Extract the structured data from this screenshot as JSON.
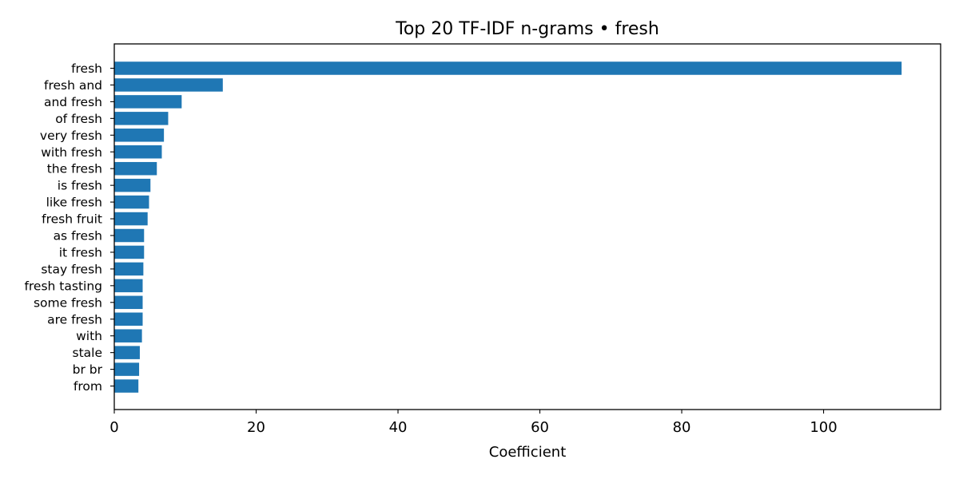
{
  "chart_data": {
    "type": "bar",
    "orientation": "horizontal",
    "title": "Top 20 TF-IDF n-grams • fresh",
    "xlabel": "Coefficient",
    "ylabel": "",
    "bar_color": "#1f77b4",
    "xlim": [
      0,
      116.5
    ],
    "xticks": [
      0,
      20,
      40,
      60,
      80,
      100
    ],
    "grid": false,
    "legend": "none",
    "categories": [
      "fresh",
      "fresh and",
      "and fresh",
      "of fresh",
      "very fresh",
      "with fresh",
      "the fresh",
      "is fresh",
      "like fresh",
      "fresh fruit",
      "as fresh",
      "it fresh",
      "stay fresh",
      "fresh tasting",
      "some fresh",
      "are fresh",
      "with",
      "stale",
      "br br",
      "from"
    ],
    "values": [
      111.0,
      15.3,
      9.5,
      7.6,
      7.0,
      6.7,
      6.0,
      5.1,
      4.9,
      4.7,
      4.2,
      4.2,
      4.1,
      4.0,
      4.0,
      4.0,
      3.9,
      3.6,
      3.5,
      3.4
    ]
  }
}
